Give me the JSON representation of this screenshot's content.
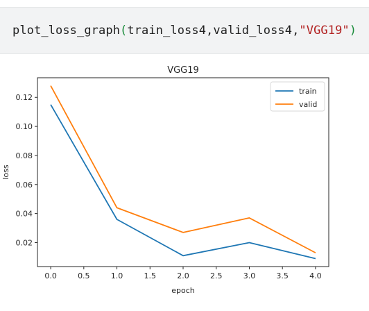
{
  "code_cell": {
    "function_name": "plot_loss_graph",
    "open_paren": "(",
    "args": "train_loss4,valid_loss4,",
    "string_arg": "\"VGG19\"",
    "close_paren": ")"
  },
  "chart_data": {
    "type": "line",
    "title": "VGG19",
    "xlabel": "epoch",
    "ylabel": "loss",
    "x": [
      0,
      1,
      2,
      3,
      4
    ],
    "xlim": [
      -0.2,
      4.2
    ],
    "ylim": [
      0.0035,
      0.1335
    ],
    "xticks": [
      "0.0",
      "0.5",
      "1.0",
      "1.5",
      "2.0",
      "2.5",
      "3.0",
      "3.5",
      "4.0"
    ],
    "yticks": [
      "0.02",
      "0.04",
      "0.06",
      "0.08",
      "0.10",
      "0.12"
    ],
    "legend_position": "top-right",
    "grid": false,
    "series": [
      {
        "name": "train",
        "color": "#1f77b4",
        "values": [
          0.115,
          0.036,
          0.011,
          0.02,
          0.009
        ]
      },
      {
        "name": "valid",
        "color": "#ff7f0e",
        "values": [
          0.128,
          0.044,
          0.027,
          0.037,
          0.013
        ]
      }
    ]
  }
}
